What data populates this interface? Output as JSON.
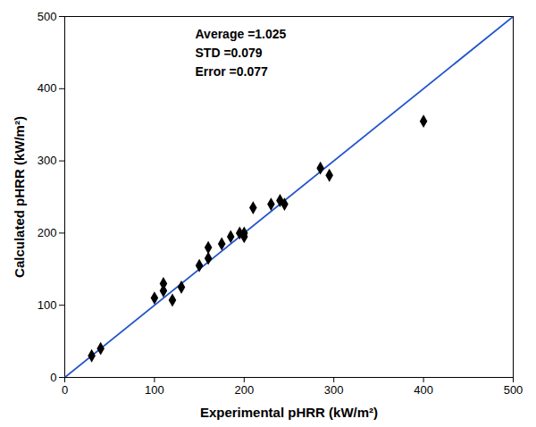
{
  "chart_data": {
    "type": "scatter",
    "xlabel": "Experimental pHRR (kW/m²)",
    "ylabel": "Calculated pHRR (kW/m²)",
    "xlim": [
      0,
      500
    ],
    "ylim": [
      0,
      500
    ],
    "xticks": [
      0,
      100,
      200,
      300,
      400,
      500
    ],
    "yticks": [
      0,
      100,
      200,
      300,
      400,
      500
    ],
    "grid": false,
    "annotations": [
      "Average =1.025\nSTD =0.079\nError =0.077"
    ],
    "series": [
      {
        "type": "line",
        "color": "#2255cc",
        "line_style": "solid",
        "x": [
          0,
          500
        ],
        "values": [
          0,
          500
        ]
      },
      {
        "type": "scatter",
        "color": "black",
        "marker": "diamond",
        "x": [
          30,
          40,
          100,
          110,
          110,
          120,
          130,
          150,
          160,
          160,
          175,
          185,
          195,
          200,
          200,
          210,
          230,
          240,
          245,
          285,
          295,
          400
        ],
        "values": [
          30,
          40,
          110,
          120,
          130,
          107,
          125,
          155,
          165,
          180,
          185,
          195,
          200,
          200,
          195,
          235,
          240,
          245,
          240,
          290,
          280,
          355
        ]
      }
    ]
  }
}
